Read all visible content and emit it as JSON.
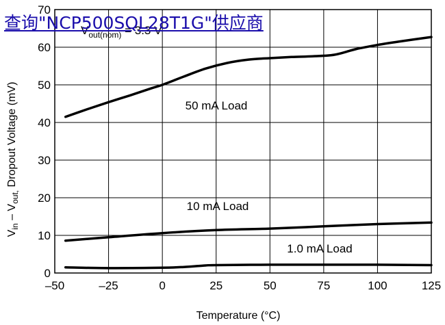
{
  "link": {
    "text": "查询\"NCP500SQL28T1G\"供应商"
  },
  "chart_data": {
    "type": "line",
    "xlabel": "Temperature (°C)",
    "ylabel": {
      "base": "V",
      "sub1": "in",
      "mid": " – V",
      "sub2": "out,",
      "tail": " Dropout Voltage (mV)"
    },
    "xlim": [
      -50,
      125
    ],
    "ylim": [
      0,
      70
    ],
    "xticks": [
      -50,
      -25,
      0,
      25,
      50,
      75,
      100,
      125
    ],
    "yticks": [
      0,
      10,
      20,
      30,
      40,
      50,
      60,
      70
    ],
    "xtick_labels": [
      "–50",
      "–25",
      "0",
      "25",
      "50",
      "75",
      "100",
      "125"
    ],
    "ytick_labels": [
      "0",
      "10",
      "20",
      "30",
      "40",
      "50",
      "60",
      "70"
    ],
    "grid": true,
    "annotations": {
      "vout": {
        "base": "V",
        "sub": "out(nom)",
        "rest": " = 3.3 V"
      }
    },
    "series": [
      {
        "name": "50 mA Load",
        "x": [
          -45,
          -35,
          -25,
          -15,
          -5,
          0,
          10,
          20,
          30,
          40,
          50,
          60,
          70,
          80,
          90,
          100,
          110,
          125
        ],
        "y": [
          41.5,
          43.5,
          45.4,
          47.2,
          49.1,
          50,
          52.2,
          54.3,
          55.8,
          56.7,
          57.1,
          57.4,
          57.6,
          58,
          59.5,
          60.6,
          61.5,
          62.7
        ]
      },
      {
        "name": "10 mA Load",
        "x": [
          -45,
          -25,
          0,
          25,
          50,
          75,
          100,
          125
        ],
        "y": [
          8.6,
          9.5,
          10.6,
          11.4,
          11.8,
          12.4,
          13,
          13.4
        ]
      },
      {
        "name": "1.0 mA Load",
        "x": [
          -45,
          -25,
          0,
          10,
          20,
          25,
          50,
          75,
          100,
          125
        ],
        "y": [
          1.5,
          1.3,
          1.4,
          1.6,
          2,
          2.1,
          2.2,
          2.2,
          2.2,
          2.1
        ]
      }
    ]
  }
}
